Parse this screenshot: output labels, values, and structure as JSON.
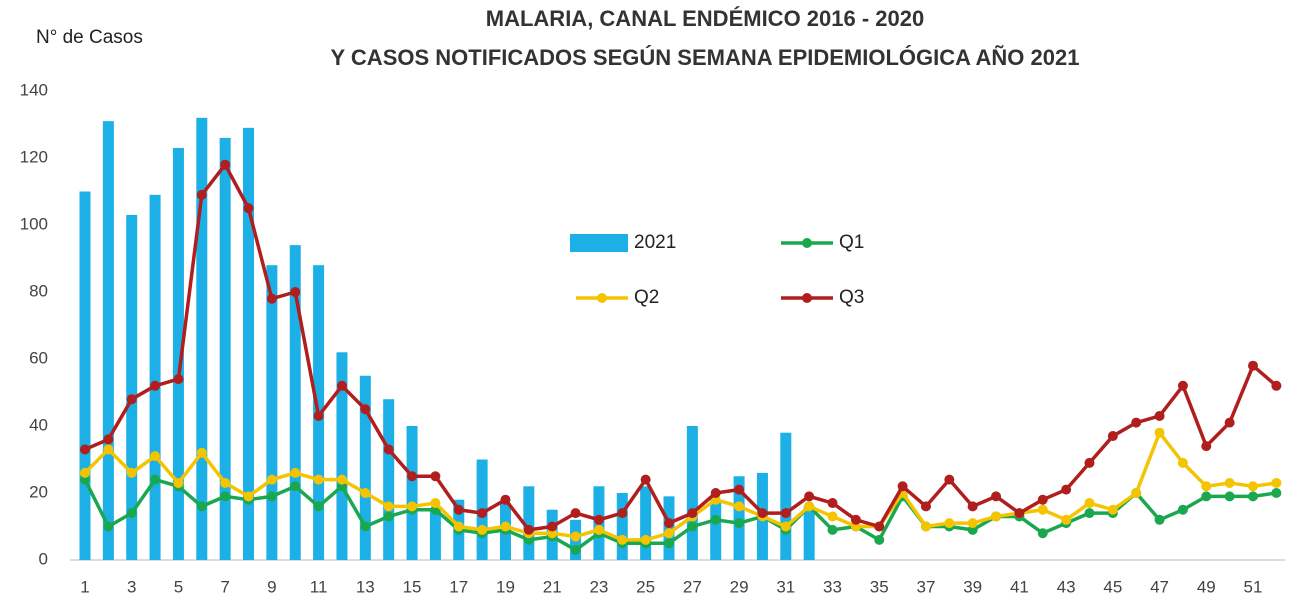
{
  "chart_data": {
    "type": "combo",
    "title": "MALARIA,  CANAL ENDÉMICO 2016 - 2020",
    "subtitle": "Y CASOS NOTIFICADOS SEGÚN SEMANA EPIDEMIOLÓGICA AÑO 2021",
    "y_label": "N° de Casos",
    "categories": [
      1,
      null,
      3,
      null,
      5,
      null,
      7,
      null,
      9,
      null,
      11,
      null,
      13,
      null,
      15,
      null,
      17,
      null,
      19,
      null,
      21,
      null,
      23,
      null,
      25,
      null,
      27,
      null,
      29,
      null,
      31,
      null,
      33,
      null,
      35,
      null,
      37,
      null,
      39,
      null,
      41,
      null,
      43,
      null,
      45,
      null,
      47,
      null,
      49,
      null,
      51,
      null
    ],
    "ylim": [
      0,
      140
    ],
    "yticks": [
      0,
      20,
      40,
      60,
      80,
      100,
      120,
      140
    ],
    "grid": false,
    "series": [
      {
        "name": "2021",
        "type": "bar",
        "color": "#1cb0e6",
        "values": [
          110,
          131,
          103,
          109,
          123,
          132,
          126,
          129,
          88,
          94,
          88,
          62,
          55,
          48,
          40,
          15,
          18,
          30,
          17,
          22,
          15,
          12,
          22,
          20,
          22,
          19,
          40,
          18,
          25,
          26,
          38,
          16,
          null,
          null,
          null,
          null,
          null,
          null,
          null,
          null,
          null,
          null,
          null,
          null,
          null,
          null,
          null,
          null,
          null,
          null,
          null,
          null
        ]
      },
      {
        "name": "Q1",
        "type": "line",
        "color": "#1aa84f",
        "values": [
          24,
          10,
          14,
          24,
          22,
          16,
          19,
          18,
          19,
          22,
          16,
          22,
          10,
          13,
          15,
          15,
          9,
          8,
          9,
          6,
          7,
          3,
          8,
          5,
          5,
          5,
          10,
          12,
          11,
          13,
          9,
          16,
          9,
          10,
          6,
          19,
          10,
          10,
          9,
          13,
          13,
          8,
          11,
          14,
          14,
          20,
          12,
          15,
          19,
          19,
          19,
          20
        ]
      },
      {
        "name": "Q2",
        "type": "line",
        "color": "#f5c400",
        "values": [
          26,
          33,
          26,
          31,
          23,
          32,
          23,
          19,
          24,
          26,
          24,
          24,
          20,
          16,
          16,
          17,
          10,
          9,
          10,
          8,
          8,
          7,
          9,
          6,
          6,
          8,
          13,
          18,
          16,
          13,
          10,
          16,
          13,
          10,
          10,
          20,
          10,
          11,
          11,
          13,
          14,
          15,
          12,
          17,
          15,
          20,
          38,
          29,
          22,
          23,
          22,
          23
        ]
      },
      {
        "name": "Q3",
        "type": "line",
        "color": "#b01e1e",
        "values": [
          33,
          36,
          48,
          52,
          54,
          109,
          118,
          105,
          78,
          80,
          43,
          52,
          45,
          33,
          25,
          25,
          15,
          14,
          18,
          9,
          10,
          14,
          12,
          14,
          24,
          11,
          14,
          20,
          21,
          14,
          14,
          19,
          17,
          12,
          10,
          22,
          16,
          24,
          16,
          19,
          14,
          18,
          21,
          29,
          37,
          41,
          43,
          52,
          34,
          41,
          58,
          52
        ]
      }
    ]
  }
}
